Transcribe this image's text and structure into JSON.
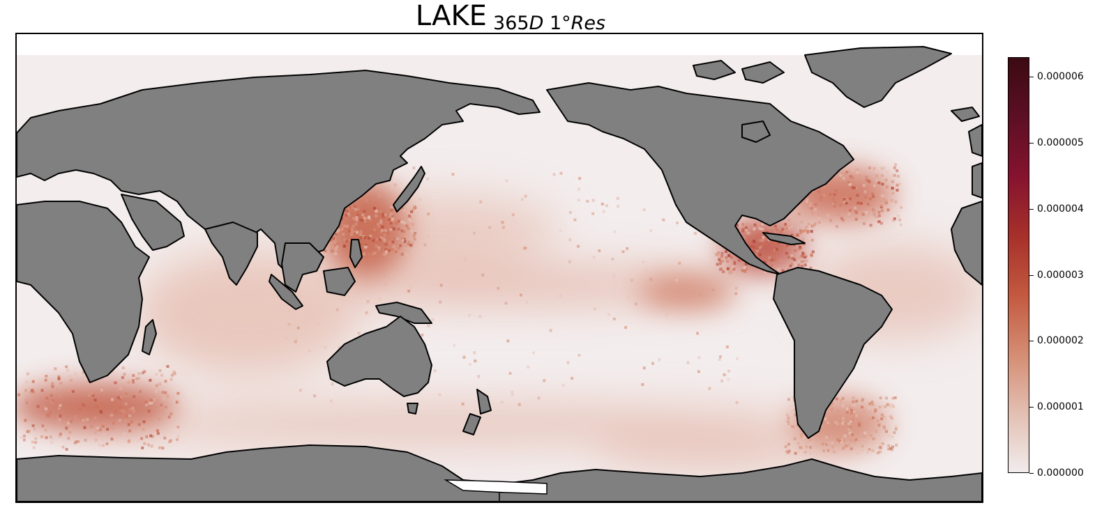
{
  "title": {
    "main": "LAKE",
    "sub_number": "365",
    "sub_italic_d": "D",
    "sub_res_prefix": "1°",
    "sub_italic_res": "Res"
  },
  "map": {
    "projection": "plate-carree",
    "central_longitude": 150,
    "land_color": "#808080",
    "coast_color": "#000000",
    "ocean_base_color": "#f3eded",
    "hotspots": [
      {
        "region": "Kuroshio current / East China Sea",
        "level": 0.75
      },
      {
        "region": "Gulf of Mexico and Caribbean",
        "level": 0.8
      },
      {
        "region": "Gulf Stream / Northwest Atlantic",
        "level": 0.65
      },
      {
        "region": "Agulhas current / South of Africa",
        "level": 0.65
      },
      {
        "region": "Equatorial Pacific band",
        "level": 0.4
      },
      {
        "region": "Indian Ocean",
        "level": 0.35
      },
      {
        "region": "Southern Ocean band",
        "level": 0.35
      },
      {
        "region": "Brazil-Malvinas confluence",
        "level": 0.45
      }
    ]
  },
  "colorbar": {
    "colormap": "amp",
    "min": 0.0,
    "max": 6.3e-06,
    "colors": [
      "#f1ecec",
      "#e2bfb2",
      "#d48c72",
      "#c2593f",
      "#a6302a",
      "#85132f",
      "#5c0f24",
      "#3b0a12"
    ],
    "ticks": [
      {
        "value": 0.0,
        "label": "0.000000"
      },
      {
        "value": 1e-06,
        "label": "0.000001"
      },
      {
        "value": 2e-06,
        "label": "0.000002"
      },
      {
        "value": 3e-06,
        "label": "0.000003"
      },
      {
        "value": 4e-06,
        "label": "0.000004"
      },
      {
        "value": 5e-06,
        "label": "0.000005"
      },
      {
        "value": 6e-06,
        "label": "0.000006"
      }
    ]
  }
}
